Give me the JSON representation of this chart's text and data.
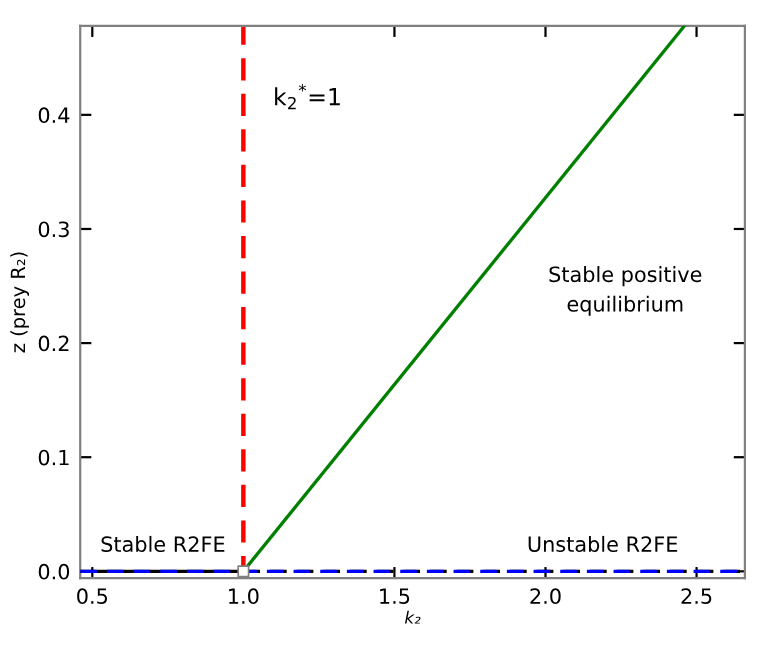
{
  "chart_data": {
    "type": "line",
    "xlabel": "k₂",
    "ylabel": "z (prey R₂)",
    "series": [
      {
        "name": "Stable R2FE",
        "color": "#000000",
        "x": [
          0.46,
          1.0
        ],
        "values": [
          0,
          0
        ],
        "line_style": "solid"
      },
      {
        "name": "Unstable R2FE",
        "color": "#000000",
        "x": [
          1.0,
          2.66
        ],
        "values": [
          0,
          0
        ],
        "line_style": "dashed"
      },
      {
        "color": "#0000ff",
        "x": [
          0.46,
          2.66
        ],
        "values": [
          0,
          0
        ],
        "line_style": "dashed"
      },
      {
        "color": "#008000",
        "x": [
          1.0,
          2.46
        ],
        "values": [
          0,
          0.478
        ],
        "line_style": "solid"
      },
      {
        "type": "scatter",
        "color": "#ffffff",
        "x": [
          1.0
        ],
        "values": [
          0
        ],
        "marker": "square"
      }
    ],
    "ref_lines": [
      {
        "axis": "x",
        "value": 1.0,
        "color": "#ff0000",
        "line_style": "dashed"
      }
    ],
    "annotations": [
      "k$_{2}$$^{*}$=1",
      "Stable positive\nequilibrium"
    ],
    "xlim": [
      0.46,
      2.66
    ],
    "ylim": [
      -0.006,
      0.478
    ],
    "xticks": [
      0.5,
      {
        "value": 1,
        "label": "1.0"
      },
      1.5,
      {
        "value": 2,
        "label": "2.0"
      },
      2.5
    ],
    "yticks": [
      {
        "value": 0,
        "label": "0.0"
      },
      0.1,
      0.2,
      0.3,
      0.4
    ],
    "grid": false,
    "legend": false
  }
}
